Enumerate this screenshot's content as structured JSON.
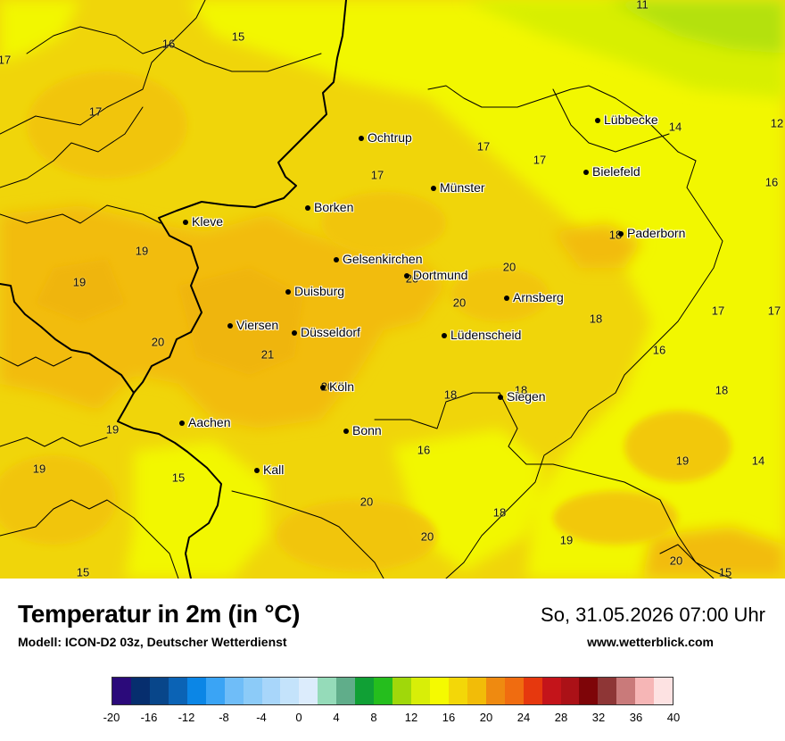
{
  "legend": {
    "title": "Temperatur in 2m (in °C)",
    "model": "Modell: ICON-D2 03z, Deutscher Wetterdienst",
    "datetime": "So, 31.05.2026 07:00 Uhr",
    "site": "www.wetterblick.com",
    "colors": [
      "#2b0a7a",
      "#062e6e",
      "#08468a",
      "#0b63b5",
      "#0b86e6",
      "#3aa4f5",
      "#6fbdf8",
      "#8ccbf8",
      "#a8d6fa",
      "#c4e3fb",
      "#dcecfc",
      "#95dbb9",
      "#60ad8a",
      "#10a035",
      "#25be1d",
      "#a0d80a",
      "#d8ee08",
      "#f5fa00",
      "#f3d708",
      "#f2bc08",
      "#ef8a10",
      "#f06c10",
      "#e6380e",
      "#c4141a",
      "#ab1117",
      "#7e0508",
      "#8e3636",
      "#c97a7a",
      "#f6b6b6",
      "#fde2e2"
    ],
    "ticks": [
      "-20",
      "-16",
      "-12",
      "-8",
      "-4",
      "0",
      "4",
      "8",
      "12",
      "16",
      "20",
      "24",
      "28",
      "32",
      "36",
      "40"
    ]
  },
  "cities": [
    {
      "name": "Ochtrup"
    },
    {
      "name": "Lübbecke"
    },
    {
      "name": "Bielefeld"
    },
    {
      "name": "Münster"
    },
    {
      "name": "Borken"
    },
    {
      "name": "Kleve"
    },
    {
      "name": "Paderborn"
    },
    {
      "name": "Gelsenkirchen"
    },
    {
      "name": "Dortmund"
    },
    {
      "name": "Duisburg"
    },
    {
      "name": "Arnsberg"
    },
    {
      "name": "Viersen"
    },
    {
      "name": "Düsseldorf"
    },
    {
      "name": "Lüdenscheid"
    },
    {
      "name": "Köln"
    },
    {
      "name": "Siegen"
    },
    {
      "name": "Aachen"
    },
    {
      "name": "Bonn"
    },
    {
      "name": "Kall"
    }
  ],
  "values": [
    "11",
    "15",
    "16",
    "17",
    "17",
    "12",
    "14",
    "17",
    "17",
    "17",
    "16",
    "19",
    "18",
    "19",
    "20",
    "20",
    "20",
    "17",
    "17",
    "20",
    "18",
    "16",
    "21",
    "20",
    "18",
    "18",
    "19",
    "18",
    "16",
    "15",
    "19",
    "19",
    "14",
    "20",
    "18",
    "20",
    "19",
    "20",
    "15",
    "15"
  ]
}
